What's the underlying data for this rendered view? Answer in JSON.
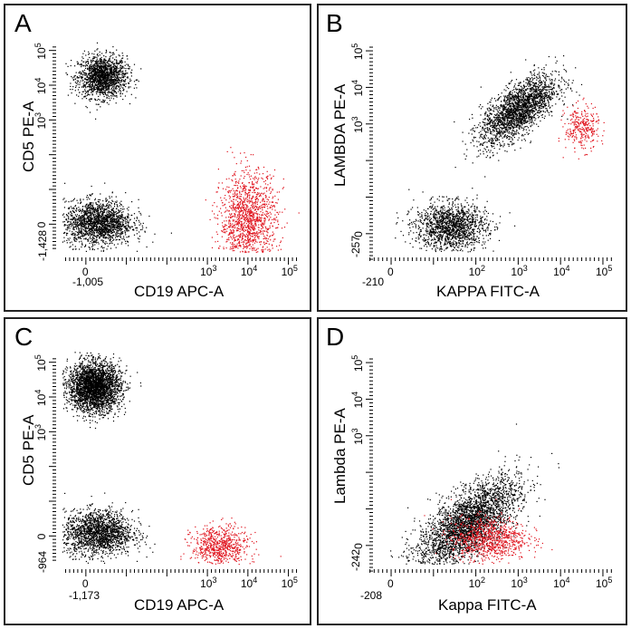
{
  "chart_data": [
    {
      "panel": "A",
      "type": "scatter",
      "xlabel": "CD19 APC-A",
      "ylabel": "CD5 PE-A",
      "x_ticks": [
        "-1,005",
        "0",
        "10^3",
        "10^4",
        "10^5"
      ],
      "y_ticks": [
        "-1,428",
        "0",
        "10^3",
        "10^4",
        "10^5"
      ],
      "colors": {
        "black": "#000000",
        "red": "#e0141e"
      },
      "populations": [
        {
          "color": "black",
          "x_center": 0.4,
          "y_center": 4.25,
          "description_label": "",
          "n": 1600
        },
        {
          "color": "black",
          "x_center": 0.3,
          "y_center": 0.05,
          "n": 1800
        },
        {
          "color": "red",
          "x_center": 4.0,
          "y_center": 0.1,
          "n": 1400
        }
      ]
    },
    {
      "panel": "B",
      "type": "scatter",
      "xlabel": "KAPPA FITC-A",
      "ylabel": "LAMBDA PE-A",
      "x_ticks": [
        "-210",
        "0",
        "10^2",
        "10^3",
        "10^4",
        "10^5"
      ],
      "y_ticks": [
        "-257",
        "0",
        "10^3",
        "10^4",
        "10^5"
      ],
      "colors": {
        "black": "#000000",
        "red": "#e0141e"
      },
      "populations": [
        {
          "color": "black",
          "x_center": 1.4,
          "y_center": 0.2,
          "n": 1500
        },
        {
          "color": "black",
          "x_center": 3.0,
          "y_center": 3.4,
          "n": 2200
        },
        {
          "color": "red",
          "x_center": 4.5,
          "y_center": 2.9,
          "n": 300
        }
      ]
    },
    {
      "panel": "C",
      "type": "scatter",
      "xlabel": "CD19 APC-A",
      "ylabel": "CD5 PE-A",
      "x_ticks": [
        "-1,173",
        "0",
        "10^3",
        "10^4",
        "10^5"
      ],
      "y_ticks": [
        "-964",
        "0",
        "10^3",
        "10^4",
        "10^5"
      ],
      "colors": {
        "black": "#000000",
        "red": "#e0141e"
      },
      "populations": [
        {
          "color": "black",
          "x_center": 0.2,
          "y_center": 4.3,
          "n": 3000
        },
        {
          "color": "black",
          "x_center": 0.3,
          "y_center": 0.1,
          "n": 1800
        },
        {
          "color": "red",
          "x_center": 3.3,
          "y_center": -0.3,
          "n": 700
        }
      ]
    },
    {
      "panel": "D",
      "type": "scatter",
      "xlabel": "Kappa FITC-A",
      "ylabel": "Lambda PE-A",
      "x_ticks": [
        "-208",
        "0",
        "10^2",
        "10^3",
        "10^4",
        "10^5"
      ],
      "y_ticks": [
        "-242",
        "0",
        "10^3",
        "10^4",
        "10^5"
      ],
      "colors": {
        "black": "#000000",
        "red": "#e0141e"
      },
      "populations": [
        {
          "color": "black",
          "x_center": 1.8,
          "y_center": 0.6,
          "n": 3200
        },
        {
          "color": "red",
          "x_center": 2.3,
          "y_center": 0.2,
          "n": 900
        }
      ]
    }
  ],
  "panels": [
    {
      "letter": "A",
      "xlabel": "CD19 APC-A",
      "ylabel": "CD5 PE-A",
      "xmin": "-1,005",
      "ymin": "-1,428"
    },
    {
      "letter": "B",
      "xlabel": "KAPPA FITC-A",
      "ylabel": "LAMBDA PE-A",
      "xmin": "-210",
      "ymin": "-257"
    },
    {
      "letter": "C",
      "xlabel": "CD19 APC-A",
      "ylabel": "CD5 PE-A",
      "xmin": "-1,173",
      "ymin": "-964"
    },
    {
      "letter": "D",
      "xlabel": "Kappa FITC-A",
      "ylabel": "Lambda PE-A",
      "xmin": "-208",
      "ymin": "-242"
    }
  ],
  "tick_text": {
    "zero": "0",
    "e2": "10",
    "e3": "10",
    "e4": "10",
    "e5": "10",
    "s2": "2",
    "s3": "3",
    "s4": "4",
    "s5": "5"
  }
}
